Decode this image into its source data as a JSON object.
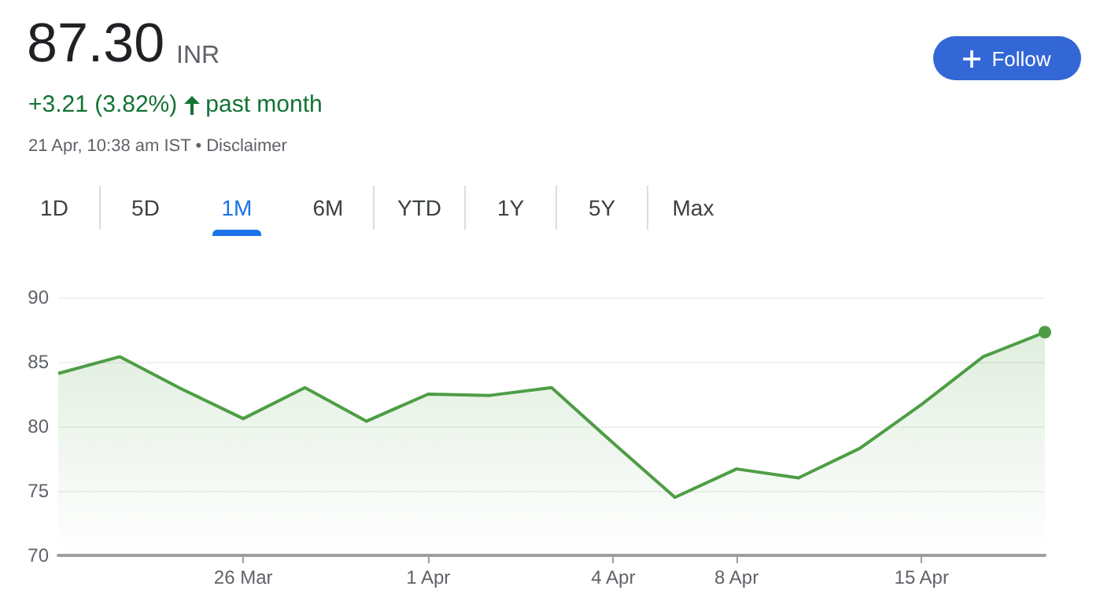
{
  "chart_data": {
    "type": "area",
    "title": "87.30",
    "subtitle": "+3.21 (3.82%)",
    "annotations": [
      "INR",
      "past month",
      "21 Apr, 10:38 am IST • Disclaimer",
      "Follow",
      "1D",
      "5D",
      "1M",
      "6M",
      "YTD",
      "1Y",
      "5Y",
      "Max"
    ],
    "categories": [
      null,
      null,
      null,
      "26 Mar",
      null,
      null,
      "1 Apr",
      null,
      null,
      "4 Apr",
      null,
      "8 Apr",
      null,
      null,
      "15 Apr",
      null,
      null
    ],
    "values": [
      84.1,
      85.4,
      82.9,
      80.6,
      83.0,
      80.4,
      82.5,
      82.4,
      83.0,
      78.7,
      74.5,
      76.7,
      76.0,
      78.3,
      81.7,
      85.4,
      87.3
    ],
    "color": "#4e9d45",
    "ylim": [
      70,
      90
    ],
    "yticks": [
      70,
      75,
      80,
      85,
      90
    ],
    "grid": "y"
  }
}
